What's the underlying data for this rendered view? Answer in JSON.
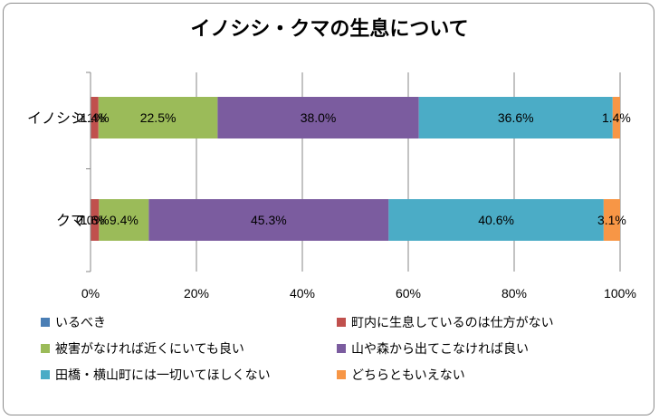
{
  "chart_data": {
    "type": "bar",
    "orientation": "horizontal",
    "stacked": "percent",
    "title": "イノシシ・クマの生息について",
    "categories": [
      "イノシシ",
      "クマ"
    ],
    "xlim": [
      0,
      100
    ],
    "x_ticks": [
      "0%",
      "20%",
      "40%",
      "60%",
      "80%",
      "100%"
    ],
    "grid": "vertical",
    "legend_position": "bottom",
    "series": [
      {
        "name": "いるべき",
        "color": "#4a7eb5",
        "values": [
          0.1,
          0.0
        ],
        "labels": [
          "0.1%",
          "0.0%"
        ]
      },
      {
        "name": "町内に生息しているのは仕方がない",
        "color": "#c0504d",
        "values": [
          1.4,
          1.6
        ],
        "labels": [
          "1.4%",
          "1.6%"
        ]
      },
      {
        "name": "被害がなければ近くにいても良い",
        "color": "#9bbb59",
        "values": [
          22.5,
          9.4
        ],
        "labels": [
          "22.5%",
          "9.4%"
        ]
      },
      {
        "name": "山や森から出てこなければ良い",
        "color": "#7b5c9f",
        "values": [
          38.0,
          45.3
        ],
        "labels": [
          "38.0%",
          "45.3%"
        ]
      },
      {
        "name": "田橋・横山町には一切いてほしくない",
        "color": "#4bacc6",
        "values": [
          36.6,
          40.6
        ],
        "labels": [
          "36.6%",
          "40.6%"
        ]
      },
      {
        "name": "どちらともいえない",
        "color": "#f79646",
        "values": [
          1.4,
          3.1
        ],
        "labels": [
          "1.4%",
          "3.1%"
        ]
      }
    ]
  }
}
